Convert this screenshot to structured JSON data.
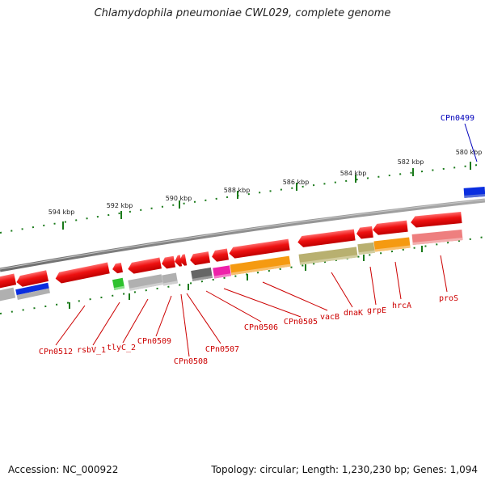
{
  "title": "Chlamydophila pneumoniae CWL029, complete genome",
  "footer": {
    "accession": "Accession: NC_000922",
    "topology": "Topology: circular; Length: 1,230,230 bp; Genes: 1,094"
  },
  "ticks": [
    "580 kbp",
    "582 kbp",
    "584 kbp",
    "586 kbp",
    "588 kbp",
    "590 kbp",
    "592 kbp",
    "594 kbp"
  ],
  "gene_labels": {
    "CPn0499": "CPn0499",
    "CPn0512": "CPn0512",
    "rsbV_1": "rsbV_1",
    "tlyC_2": "tlyC_2",
    "CPn0509": "CPn0509",
    "CPn0508": "CPn0508",
    "CPn0507": "CPn0507",
    "CPn0506": "CPn0506",
    "CPn0505": "CPn0505",
    "vacB": "vacB",
    "dnaK": "dnaK",
    "grpE": "grpE",
    "hrcA": "hrcA",
    "proS": "proS"
  },
  "colors": {
    "gene_red": "#ee1111",
    "label_red": "#cc0000",
    "label_blue": "#0000bb",
    "tick_green": "#1a7a1a",
    "backbone": "#888888",
    "blue_feature": "#0a2ee0",
    "green_feature": "#2ec22e",
    "magenta_feature": "#ee22aa",
    "orange_feature": "#f59a11",
    "olive_feature": "#b8b070",
    "pink_feature": "#ee7f7f",
    "gray_feature": "#b0b0b0",
    "dark_gray_feature": "#666666"
  }
}
